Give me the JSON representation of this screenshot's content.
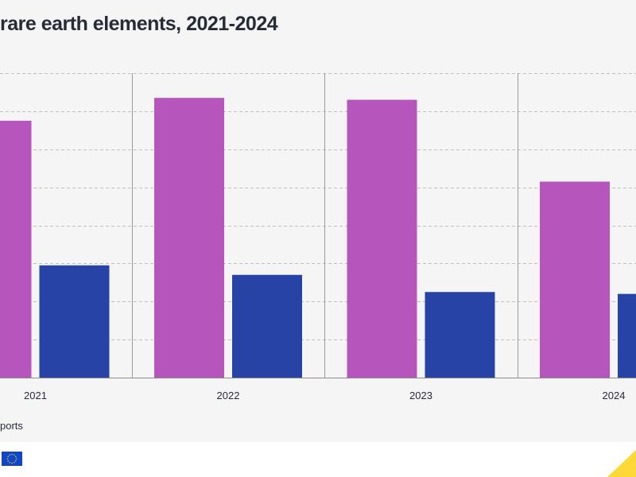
{
  "title": "rare earth elements, 2021-2024",
  "legend": {
    "visible_label": "ports"
  },
  "colors": {
    "series_a": "#b656bd",
    "series_b": "#2843a6",
    "grid": "#bfbfbf",
    "divider": "#9a9a9a",
    "background": "#f5f5f5",
    "title": "#262b38",
    "flag_blue": "#0e47cb",
    "flag_star": "#ffcc00",
    "accent_yellow": "#fdd837"
  },
  "icons": {
    "footer_logo": "eu-flag-icon",
    "corner_mark": "yellow-corner-icon"
  },
  "chart_data": {
    "type": "bar",
    "categories": [
      "2021",
      "2022",
      "2023",
      "2024"
    ],
    "series": [
      {
        "values": [
          67.5,
          73.5,
          73.0,
          51.5
        ]
      },
      {
        "values": [
          29.5,
          27.0,
          22.5,
          22.0
        ]
      }
    ],
    "ylim": [
      0,
      80
    ],
    "grid": true
  }
}
